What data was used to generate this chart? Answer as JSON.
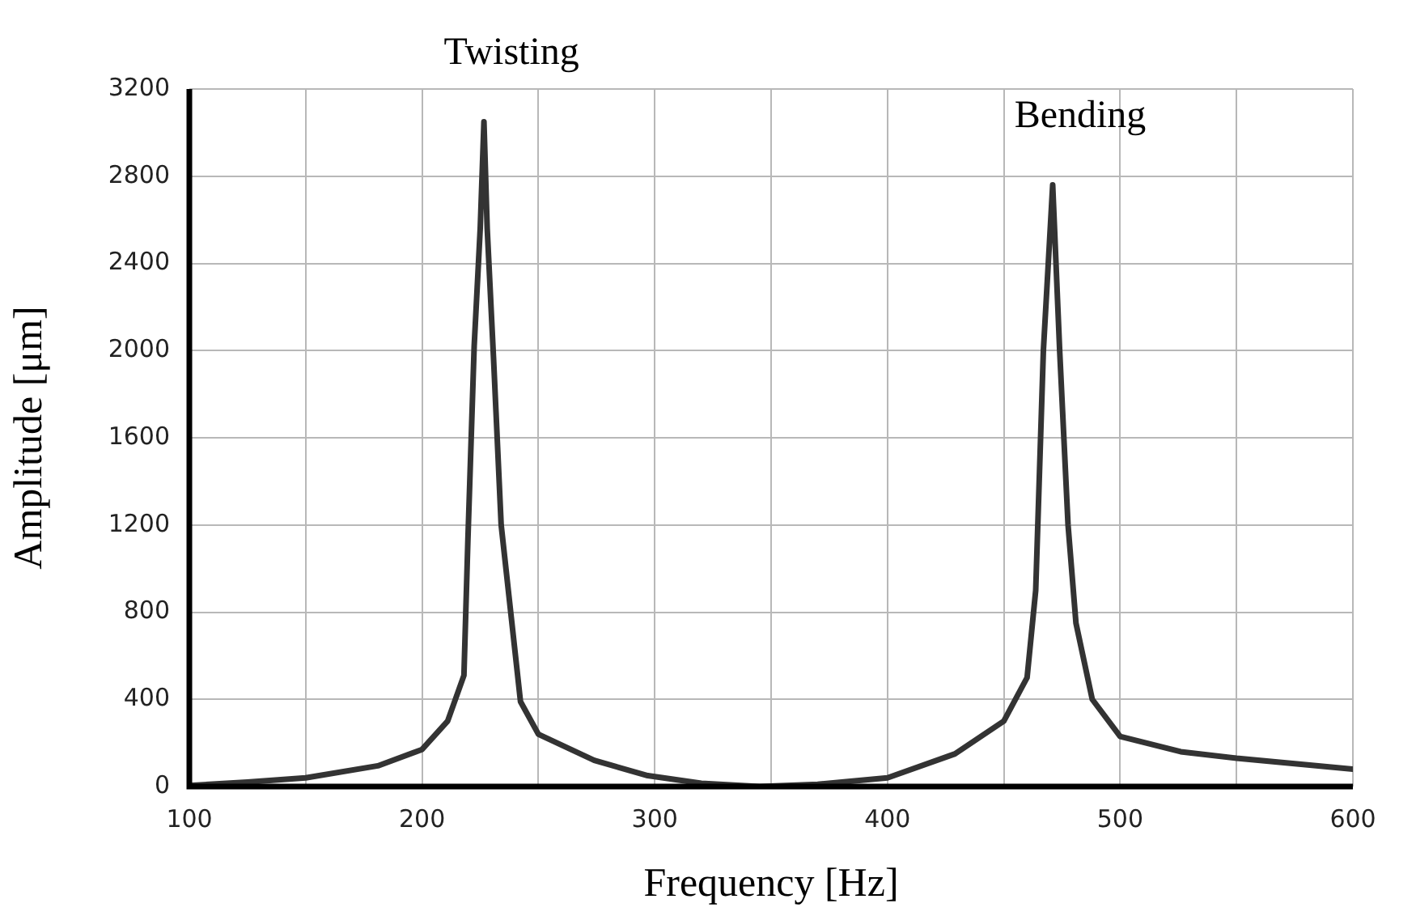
{
  "chart_data": {
    "type": "line",
    "xlabel": "Frequency [Hz]",
    "ylabel": "Amplitude [μm]",
    "xlim": [
      100,
      600
    ],
    "ylim": [
      0,
      3200
    ],
    "xticks": [
      100,
      {
        "value": 150,
        "label": null
      },
      200,
      {
        "value": 250,
        "label": null
      },
      300,
      {
        "value": 350,
        "label": null
      },
      400,
      {
        "value": 450,
        "label": null
      },
      500,
      {
        "value": 550,
        "label": null
      },
      600
    ],
    "yticks": [
      0,
      400,
      800,
      1200,
      1600,
      2000,
      2400,
      2800,
      3200
    ],
    "grid": true,
    "marker": "none",
    "line_style": "solid",
    "annotations": [
      {
        "text": "Twisting",
        "x": 226.6,
        "y": 3050
      },
      {
        "text": "Bending",
        "x": 471,
        "y": 2760
      }
    ],
    "series": [
      {
        "color": "#333333",
        "x": [
          100,
          125,
          150,
          181,
          200,
          211,
          218,
          219.7,
          222.4,
          225,
          226.6,
          228,
          230.7,
          234,
          242.3,
          250,
          274,
          297,
          320,
          345,
          370,
          400,
          429,
          450,
          460,
          463.7,
          467,
          471,
          474,
          477.6,
          481,
          488,
          500,
          526,
          550,
          575,
          600
        ],
        "values": [
          5,
          20,
          40,
          95,
          170,
          300,
          510,
          1130,
          2020,
          2560,
          3050,
          2560,
          1970,
          1200,
          390,
          240,
          120,
          50,
          15,
          0,
          10,
          40,
          150,
          300,
          500,
          900,
          2000,
          2760,
          2000,
          1200,
          750,
          400,
          230,
          160,
          130,
          105,
          80
        ]
      }
    ]
  }
}
